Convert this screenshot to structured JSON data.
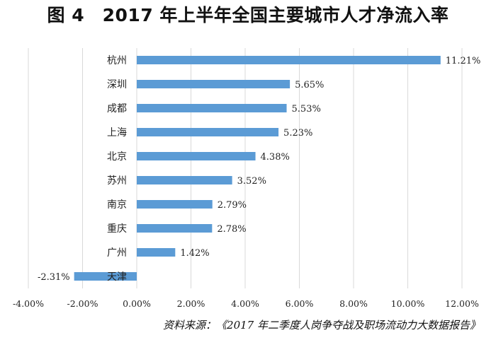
{
  "title": "图 4　2017 年上半年全国主要城市人才净流入率",
  "source": "资料来源：《2017 年二季度人岗争夺战及职场流动力大数据报告》",
  "colors": {
    "bar": "#5b9bd5",
    "grid": "#d9d9d9",
    "text": "#222222"
  },
  "chart_data": {
    "type": "bar",
    "orientation": "horizontal",
    "title": "图 4　2017 年上半年全国主要城市人才净流入率",
    "categories": [
      "杭州",
      "深圳",
      "成都",
      "上海",
      "北京",
      "苏州",
      "南京",
      "重庆",
      "广州",
      "天津"
    ],
    "values": [
      11.21,
      5.65,
      5.53,
      5.23,
      4.38,
      3.52,
      2.79,
      2.78,
      1.42,
      -2.31
    ],
    "value_labels": [
      "11.21%",
      "5.65%",
      "5.53%",
      "5.23%",
      "4.38%",
      "3.52%",
      "2.79%",
      "2.78%",
      "1.42%",
      "-2.31%"
    ],
    "unit": "%",
    "xlim": [
      -4,
      12
    ],
    "xticks": [
      -4,
      -2,
      0,
      2,
      4,
      6,
      8,
      10,
      12
    ],
    "xtick_labels": [
      "-4.00%",
      "-2.00%",
      "0.00%",
      "2.00%",
      "4.00%",
      "6.00%",
      "8.00%",
      "10.00%",
      "12.00%"
    ],
    "grid": "vertical",
    "legend": "none"
  }
}
